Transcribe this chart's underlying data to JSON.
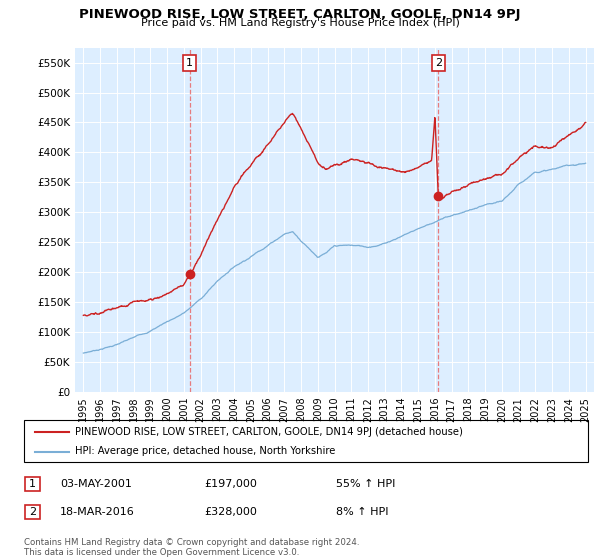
{
  "title": "PINEWOOD RISE, LOW STREET, CARLTON, GOOLE, DN14 9PJ",
  "subtitle": "Price paid vs. HM Land Registry's House Price Index (HPI)",
  "ylim": [
    0,
    575000
  ],
  "yticks": [
    0,
    50000,
    100000,
    150000,
    200000,
    250000,
    300000,
    350000,
    400000,
    450000,
    500000,
    550000
  ],
  "ytick_labels": [
    "£0",
    "£50K",
    "£100K",
    "£150K",
    "£200K",
    "£250K",
    "£300K",
    "£350K",
    "£400K",
    "£450K",
    "£500K",
    "£550K"
  ],
  "sale1_date": 2001.34,
  "sale1_price": 197000,
  "sale1_label": "1",
  "sale1_date_str": "03-MAY-2001",
  "sale1_price_str": "£197,000",
  "sale1_pct": "55% ↑ HPI",
  "sale2_date": 2016.21,
  "sale2_price": 328000,
  "sale2_label": "2",
  "sale2_date_str": "18-MAR-2016",
  "sale2_price_str": "£328,000",
  "sale2_pct": "8% ↑ HPI",
  "red_color": "#cc2222",
  "blue_color": "#7aaed6",
  "dashed_color": "#e87070",
  "legend_label_red": "PINEWOOD RISE, LOW STREET, CARLTON, GOOLE, DN14 9PJ (detached house)",
  "legend_label_blue": "HPI: Average price, detached house, North Yorkshire",
  "footer": "Contains HM Land Registry data © Crown copyright and database right 2024.\nThis data is licensed under the Open Government Licence v3.0.",
  "bg_color": "#ffffff",
  "plot_bg_color": "#ddeeff"
}
